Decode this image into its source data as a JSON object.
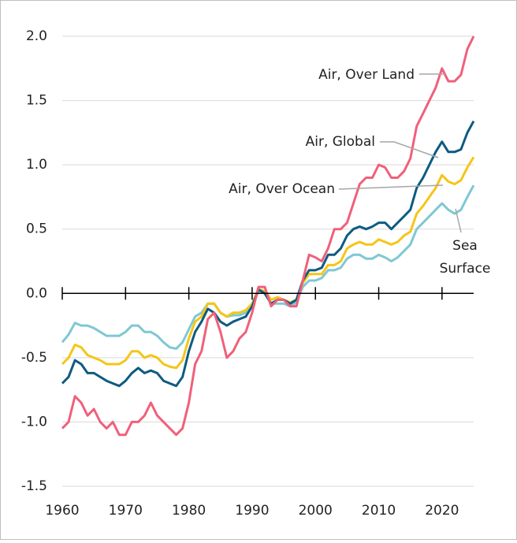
{
  "chart_data": {
    "type": "line",
    "x": [
      1960,
      1961,
      1962,
      1963,
      1964,
      1965,
      1966,
      1967,
      1968,
      1969,
      1970,
      1971,
      1972,
      1973,
      1974,
      1975,
      1976,
      1977,
      1978,
      1979,
      1980,
      1981,
      1982,
      1983,
      1984,
      1985,
      1986,
      1987,
      1988,
      1989,
      1990,
      1991,
      1992,
      1993,
      1994,
      1995,
      1996,
      1997,
      1998,
      1999,
      2000,
      2001,
      2002,
      2003,
      2004,
      2005,
      2006,
      2007,
      2008,
      2009,
      2010,
      2011,
      2012,
      2013,
      2014,
      2015,
      2016,
      2017,
      2018,
      2019,
      2020,
      2021,
      2022,
      2023,
      2024,
      2025
    ],
    "series": [
      {
        "name": "Sea Surface",
        "color": "#7ec8d3",
        "values": [
          -0.38,
          -0.32,
          -0.23,
          -0.25,
          -0.25,
          -0.27,
          -0.3,
          -0.33,
          -0.33,
          -0.33,
          -0.3,
          -0.25,
          -0.25,
          -0.3,
          -0.3,
          -0.33,
          -0.38,
          -0.42,
          -0.43,
          -0.38,
          -0.28,
          -0.18,
          -0.15,
          -0.08,
          -0.08,
          -0.15,
          -0.18,
          -0.17,
          -0.17,
          -0.15,
          -0.1,
          0.02,
          0.0,
          -0.08,
          -0.08,
          -0.08,
          -0.1,
          -0.07,
          0.05,
          0.1,
          0.1,
          0.12,
          0.18,
          0.18,
          0.2,
          0.27,
          0.3,
          0.3,
          0.27,
          0.27,
          0.3,
          0.28,
          0.25,
          0.28,
          0.33,
          0.38,
          0.5,
          0.55,
          0.6,
          0.65,
          0.7,
          0.65,
          0.62,
          0.65,
          0.75,
          0.84
        ]
      },
      {
        "name": "Air, Over Ocean",
        "color": "#f5c518",
        "values": [
          -0.55,
          -0.5,
          -0.4,
          -0.42,
          -0.48,
          -0.5,
          -0.52,
          -0.55,
          -0.55,
          -0.55,
          -0.52,
          -0.45,
          -0.45,
          -0.5,
          -0.48,
          -0.5,
          -0.55,
          -0.57,
          -0.58,
          -0.52,
          -0.35,
          -0.22,
          -0.18,
          -0.08,
          -0.08,
          -0.15,
          -0.18,
          -0.15,
          -0.15,
          -0.13,
          -0.08,
          0.03,
          0.02,
          -0.05,
          -0.03,
          -0.05,
          -0.07,
          -0.05,
          0.08,
          0.15,
          0.15,
          0.15,
          0.22,
          0.22,
          0.25,
          0.35,
          0.38,
          0.4,
          0.38,
          0.38,
          0.42,
          0.4,
          0.38,
          0.4,
          0.45,
          0.48,
          0.62,
          0.68,
          0.75,
          0.82,
          0.92,
          0.87,
          0.85,
          0.88,
          0.98,
          1.06
        ]
      },
      {
        "name": "Air, Global",
        "color": "#0d5b80",
        "values": [
          -0.7,
          -0.65,
          -0.52,
          -0.55,
          -0.62,
          -0.62,
          -0.65,
          -0.68,
          -0.7,
          -0.72,
          -0.68,
          -0.62,
          -0.58,
          -0.62,
          -0.6,
          -0.62,
          -0.68,
          -0.7,
          -0.72,
          -0.65,
          -0.45,
          -0.3,
          -0.22,
          -0.12,
          -0.15,
          -0.22,
          -0.25,
          -0.22,
          -0.2,
          -0.18,
          -0.1,
          0.03,
          0.0,
          -0.08,
          -0.05,
          -0.05,
          -0.08,
          -0.05,
          0.1,
          0.18,
          0.18,
          0.2,
          0.3,
          0.3,
          0.35,
          0.45,
          0.5,
          0.52,
          0.5,
          0.52,
          0.55,
          0.55,
          0.5,
          0.55,
          0.6,
          0.65,
          0.82,
          0.9,
          1.0,
          1.1,
          1.18,
          1.1,
          1.1,
          1.12,
          1.25,
          1.34
        ]
      },
      {
        "name": "Air, Over Land",
        "color": "#f0607a",
        "values": [
          -1.05,
          -1.0,
          -0.8,
          -0.85,
          -0.95,
          -0.9,
          -1.0,
          -1.05,
          -1.0,
          -1.1,
          -1.1,
          -1.0,
          -1.0,
          -0.95,
          -0.85,
          -0.95,
          -1.0,
          -1.05,
          -1.1,
          -1.05,
          -0.85,
          -0.55,
          -0.45,
          -0.2,
          -0.15,
          -0.3,
          -0.5,
          -0.45,
          -0.35,
          -0.3,
          -0.15,
          0.05,
          0.05,
          -0.1,
          -0.05,
          -0.05,
          -0.1,
          -0.1,
          0.1,
          0.3,
          0.28,
          0.25,
          0.35,
          0.5,
          0.5,
          0.55,
          0.7,
          0.85,
          0.9,
          0.9,
          1.0,
          0.98,
          0.9,
          0.9,
          0.95,
          1.05,
          1.3,
          1.4,
          1.5,
          1.6,
          1.75,
          1.65,
          1.65,
          1.7,
          1.9,
          2.0
        ]
      }
    ],
    "xlim": [
      1960,
      2025
    ],
    "xticks": [
      1960,
      1970,
      1980,
      1990,
      2000,
      2010,
      2020
    ],
    "ylim": [
      -1.5,
      2.0
    ],
    "yticks": [
      -1.5,
      {
        "value": -1,
        "label": "-1.0"
      },
      -0.5,
      {
        "value": 0,
        "label": "0.0"
      },
      0.5,
      {
        "value": 1,
        "label": "1.0"
      },
      1.5,
      {
        "value": 2,
        "label": "2.0"
      }
    ],
    "grid": true
  }
}
